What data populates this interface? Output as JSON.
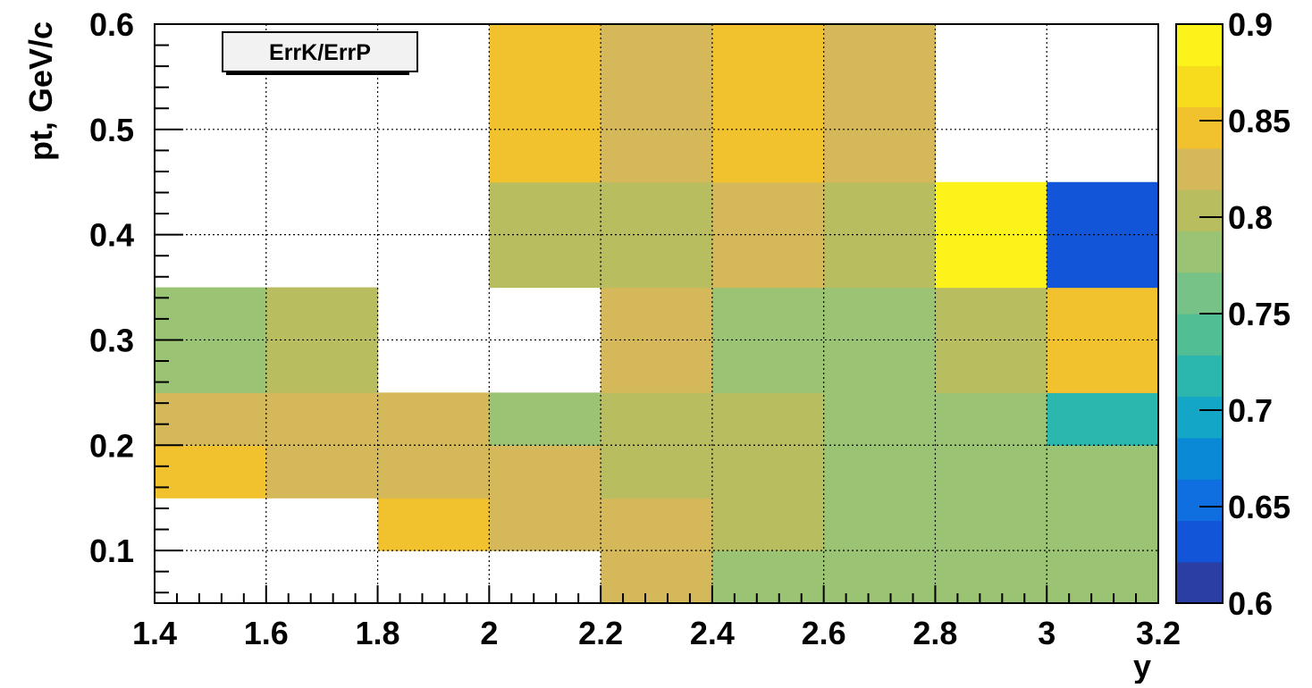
{
  "chart_data": {
    "type": "heatmap",
    "title": "ErrK/ErrP",
    "xlabel": "y",
    "ylabel": "pt, GeV/c",
    "xlim": [
      1.4,
      3.2
    ],
    "ylim": [
      0.05,
      0.6
    ],
    "zlim": [
      0.6,
      0.9
    ],
    "grid": true,
    "x_edges": [
      1.4,
      1.6,
      1.8,
      2.0,
      2.2,
      2.4,
      2.6,
      2.8,
      3.0,
      3.2
    ],
    "y_edges": [
      0.05,
      0.15,
      0.25,
      0.35,
      0.45,
      0.6
    ],
    "x_tick_labels": [
      "1.4",
      "1.6",
      "1.8",
      "2",
      "2.2",
      "2.4",
      "2.6",
      "2.8",
      "3",
      "3.2"
    ],
    "y_tick_values": [
      0.1,
      0.2,
      0.3,
      0.4,
      0.5,
      0.6
    ],
    "y_tick_labels": [
      "0.1",
      "0.2",
      "0.3",
      "0.4",
      "0.5",
      "0.6"
    ],
    "z_tick_values": [
      0.6,
      0.65,
      0.7,
      0.75,
      0.8,
      0.85,
      0.9
    ],
    "z_tick_labels": [
      "0.6",
      "0.65",
      "0.7",
      "0.75",
      "0.8",
      "0.85",
      "0.9"
    ],
    "values": [
      [
        null,
        null,
        0.84,
        0.825,
        0.83,
        0.81,
        0.785,
        0.775,
        0.77,
        0.77
      ],
      [
        0.83,
        0.82,
        0.82,
        0.825,
        0.805,
        0.8,
        0.79,
        0.775,
        0.775,
        0.775
      ],
      [
        0.83,
        0.82,
        0.82,
        0.795,
        0.795,
        0.79,
        0.79,
        0.795,
        0.72,
        0.72
      ],
      [
        0.79,
        0.8,
        null,
        null,
        0.825,
        0.79,
        0.79,
        0.805,
        0.85,
        0.85
      ],
      [
        null,
        null,
        null,
        0.805,
        0.805,
        0.82,
        0.8,
        0.895,
        0.635,
        0.635
      ],
      [
        null,
        null,
        null,
        0.85,
        0.825,
        0.85,
        0.825,
        null,
        null,
        null
      ]
    ],
    "cells": [
      {
        "x0": 1.8,
        "x1": 2.0,
        "y0": 0.1,
        "y1": 0.15,
        "z": 0.85
      },
      {
        "x0": 2.0,
        "x1": 2.2,
        "y0": 0.1,
        "y1": 0.15,
        "z": 0.825
      },
      {
        "x0": 2.2,
        "x1": 2.4,
        "y0": 0.05,
        "y1": 0.15,
        "z": 0.83
      },
      {
        "x0": 2.4,
        "x1": 2.6,
        "y0": 0.05,
        "y1": 0.1,
        "z": 0.79
      },
      {
        "x0": 2.4,
        "x1": 2.6,
        "y0": 0.1,
        "y1": 0.15,
        "z": 0.805
      },
      {
        "x0": 2.6,
        "x1": 2.8,
        "y0": 0.05,
        "y1": 0.1,
        "z": 0.775
      },
      {
        "x0": 2.6,
        "x1": 2.8,
        "y0": 0.1,
        "y1": 0.15,
        "z": 0.79
      },
      {
        "x0": 2.8,
        "x1": 3.0,
        "y0": 0.05,
        "y1": 0.1,
        "z": 0.775
      },
      {
        "x0": 2.8,
        "x1": 3.0,
        "y0": 0.1,
        "y1": 0.15,
        "z": 0.79
      },
      {
        "x0": 3.0,
        "x1": 3.2,
        "y0": 0.05,
        "y1": 0.15,
        "z": 0.775
      },
      {
        "x0": 1.4,
        "x1": 1.6,
        "y0": 0.15,
        "y1": 0.2,
        "z": 0.84
      },
      {
        "x0": 1.4,
        "x1": 1.6,
        "y0": 0.2,
        "y1": 0.25,
        "z": 0.825
      },
      {
        "x0": 1.6,
        "x1": 1.8,
        "y0": 0.15,
        "y1": 0.25,
        "z": 0.825
      },
      {
        "x0": 1.8,
        "x1": 2.0,
        "y0": 0.15,
        "y1": 0.25,
        "z": 0.825
      },
      {
        "x0": 2.0,
        "x1": 2.2,
        "y0": 0.15,
        "y1": 0.2,
        "z": 0.825
      },
      {
        "x0": 2.0,
        "x1": 2.2,
        "y0": 0.2,
        "y1": 0.25,
        "z": 0.79
      },
      {
        "x0": 2.2,
        "x1": 2.4,
        "y0": 0.15,
        "y1": 0.25,
        "z": 0.8
      },
      {
        "x0": 2.4,
        "x1": 2.6,
        "y0": 0.15,
        "y1": 0.25,
        "z": 0.795
      },
      {
        "x0": 2.6,
        "x1": 2.8,
        "y0": 0.15,
        "y1": 0.25,
        "z": 0.79
      },
      {
        "x0": 2.8,
        "x1": 3.0,
        "y0": 0.15,
        "y1": 0.2,
        "z": 0.775
      },
      {
        "x0": 2.8,
        "x1": 3.0,
        "y0": 0.2,
        "y1": 0.25,
        "z": 0.79
      },
      {
        "x0": 3.0,
        "x1": 3.2,
        "y0": 0.15,
        "y1": 0.2,
        "z": 0.775
      },
      {
        "x0": 3.0,
        "x1": 3.2,
        "y0": 0.2,
        "y1": 0.25,
        "z": 0.725
      },
      {
        "x0": 1.4,
        "x1": 1.6,
        "y0": 0.25,
        "y1": 0.35,
        "z": 0.79
      },
      {
        "x0": 1.6,
        "x1": 1.8,
        "y0": 0.25,
        "y1": 0.35,
        "z": 0.8
      },
      {
        "x0": 2.2,
        "x1": 2.4,
        "y0": 0.25,
        "y1": 0.35,
        "z": 0.825
      },
      {
        "x0": 2.4,
        "x1": 2.6,
        "y0": 0.25,
        "y1": 0.35,
        "z": 0.79
      },
      {
        "x0": 2.6,
        "x1": 2.8,
        "y0": 0.25,
        "y1": 0.35,
        "z": 0.79
      },
      {
        "x0": 2.8,
        "x1": 3.0,
        "y0": 0.25,
        "y1": 0.35,
        "z": 0.8
      },
      {
        "x0": 3.0,
        "x1": 3.2,
        "y0": 0.25,
        "y1": 0.35,
        "z": 0.85
      },
      {
        "x0": 2.0,
        "x1": 2.2,
        "y0": 0.35,
        "y1": 0.45,
        "z": 0.805
      },
      {
        "x0": 2.2,
        "x1": 2.4,
        "y0": 0.35,
        "y1": 0.45,
        "z": 0.805
      },
      {
        "x0": 2.4,
        "x1": 2.6,
        "y0": 0.35,
        "y1": 0.45,
        "z": 0.825
      },
      {
        "x0": 2.6,
        "x1": 2.8,
        "y0": 0.35,
        "y1": 0.45,
        "z": 0.805
      },
      {
        "x0": 2.8,
        "x1": 3.0,
        "y0": 0.35,
        "y1": 0.45,
        "z": 0.895
      },
      {
        "x0": 3.0,
        "x1": 3.2,
        "y0": 0.35,
        "y1": 0.45,
        "z": 0.635
      },
      {
        "x0": 2.0,
        "x1": 2.2,
        "y0": 0.45,
        "y1": 0.6,
        "z": 0.85
      },
      {
        "x0": 2.2,
        "x1": 2.4,
        "y0": 0.45,
        "y1": 0.6,
        "z": 0.825
      },
      {
        "x0": 2.4,
        "x1": 2.6,
        "y0": 0.45,
        "y1": 0.6,
        "z": 0.85
      },
      {
        "x0": 2.6,
        "x1": 2.8,
        "y0": 0.45,
        "y1": 0.6,
        "z": 0.825
      }
    ],
    "palette": [
      "#2b3ea4",
      "#1255d8",
      "#0f6ee0",
      "#0a89d6",
      "#14a6c7",
      "#2bb6ae",
      "#52be93",
      "#76c287",
      "#9bc374",
      "#b8bd60",
      "#d4b85a",
      "#f2c12e",
      "#f7dc1e",
      "#fbf31a"
    ]
  }
}
